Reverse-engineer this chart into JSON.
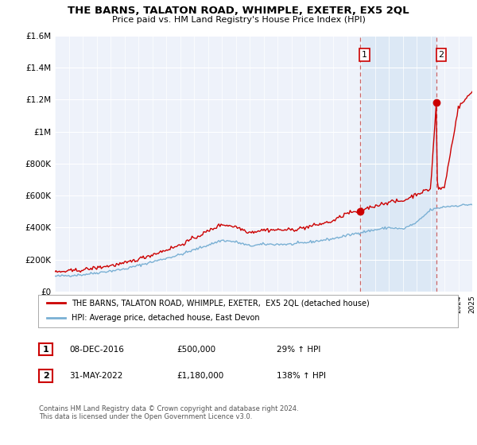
{
  "title": "THE BARNS, TALATON ROAD, WHIMPLE, EXETER, EX5 2QL",
  "subtitle": "Price paid vs. HM Land Registry's House Price Index (HPI)",
  "legend_line1": "THE BARNS, TALATON ROAD, WHIMPLE, EXETER,  EX5 2QL (detached house)",
  "legend_line2": "HPI: Average price, detached house, East Devon",
  "footnote": "Contains HM Land Registry data © Crown copyright and database right 2024.\nThis data is licensed under the Open Government Licence v3.0.",
  "sale1_date": "08-DEC-2016",
  "sale1_price": "£500,000",
  "sale1_hpi": "29% ↑ HPI",
  "sale2_date": "31-MAY-2022",
  "sale2_price": "£1,180,000",
  "sale2_hpi": "138% ↑ HPI",
  "xlim": [
    1995,
    2025
  ],
  "ylim": [
    0,
    1600000
  ],
  "yticks": [
    0,
    200000,
    400000,
    600000,
    800000,
    1000000,
    1200000,
    1400000,
    1600000
  ],
  "ytick_labels": [
    "£0",
    "£200K",
    "£400K",
    "£600K",
    "£800K",
    "£1M",
    "£1.2M",
    "£1.4M",
    "£1.6M"
  ],
  "property_color": "#cc0000",
  "hpi_color": "#7ab0d4",
  "background_color": "#eef2fa",
  "highlight_color": "#dce8f5",
  "sale1_x": 2016.92,
  "sale1_y": 500000,
  "sale2_x": 2022.42,
  "sale2_y": 1180000,
  "vline1_x": 2016.92,
  "vline2_x": 2022.42
}
